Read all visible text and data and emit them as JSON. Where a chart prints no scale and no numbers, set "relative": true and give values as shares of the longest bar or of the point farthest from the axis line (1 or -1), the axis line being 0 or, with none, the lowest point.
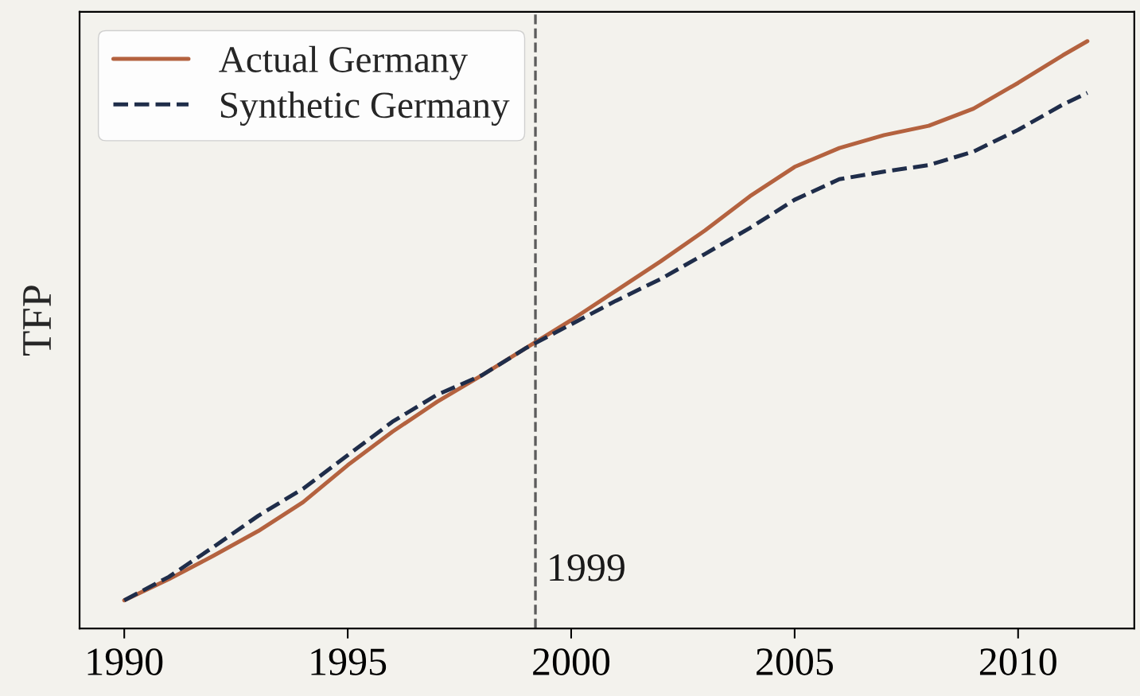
{
  "chart_data": {
    "type": "line",
    "ylabel": "TFP",
    "relative": true,
    "x": [
      1990,
      1991,
      1992,
      1993,
      1994,
      1995,
      1996,
      1997,
      1998,
      1999,
      2000,
      2001,
      2002,
      2003,
      2004,
      2005,
      2006,
      2007,
      2008,
      2009,
      2010,
      2011,
      2011.55
    ],
    "series": [
      {
        "name": "Actual Germany",
        "color": "#b4623f",
        "line_style": "solid",
        "values": [
          0.048,
          0.084,
          0.124,
          0.166,
          0.215,
          0.278,
          0.335,
          0.386,
          0.431,
          0.478,
          0.525,
          0.575,
          0.625,
          0.678,
          0.736,
          0.786,
          0.818,
          0.84,
          0.856,
          0.885,
          0.929,
          0.976,
          1.0
        ]
      },
      {
        "name": "Synthetic Germany",
        "color": "#1f2d4a",
        "line_style": "dashed",
        "values": [
          0.048,
          0.088,
          0.139,
          0.192,
          0.238,
          0.295,
          0.352,
          0.398,
          0.431,
          0.478,
          0.518,
          0.558,
          0.595,
          0.638,
          0.682,
          0.73,
          0.765,
          0.778,
          0.789,
          0.812,
          0.849,
          0.892,
          0.912
        ]
      }
    ],
    "xlim": [
      1989,
      2012.6
    ],
    "xticks": [
      1990,
      1995,
      2000,
      2005,
      2010
    ],
    "ref_lines": [
      {
        "axis": "x",
        "value": 1999.2,
        "label": "1999",
        "color": "#5c5c5c",
        "line_style": "dashed"
      }
    ],
    "legend": "top left",
    "tick_labels": "x"
  }
}
